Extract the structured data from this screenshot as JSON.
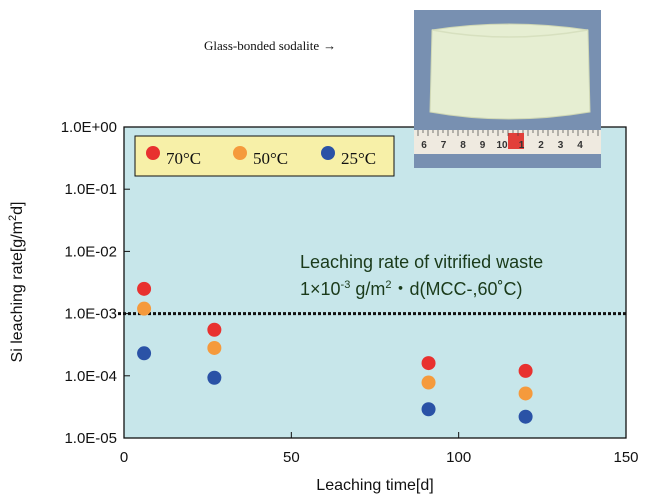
{
  "colors": {
    "plot_bg": "#c7e6ea",
    "legend_bg": "#f7f0a8",
    "series_70": "#e8312f",
    "series_50": "#f59a3c",
    "series_25": "#2a52a6",
    "reference_line": "#111111"
  },
  "photo": {
    "caption": "Glass-bonded sodalite",
    "arrow": "→",
    "ruler_numbers": [
      "6",
      "7",
      "8",
      "9",
      "10",
      "1",
      "2",
      "3",
      "4"
    ]
  },
  "annotation": {
    "line1": "Leaching rate of vitrified waste",
    "line2_prefix": "1×10",
    "line2_exp": "-3",
    "line2_unit": " g/m",
    "line2_sq": "2",
    "line2_suffix": "・d(MCC-,60˚C)"
  },
  "chart_data": {
    "type": "scatter",
    "xlabel": "Leaching time[d]",
    "ylabel_main": "Si leaching rate[g/m",
    "ylabel_sup": "2",
    "ylabel_end": "d]",
    "xlim": [
      0,
      150
    ],
    "ylim": [
      1e-05,
      1
    ],
    "yscale": "log",
    "xticks": [
      0,
      50,
      100,
      150
    ],
    "xtick_labels": [
      "0",
      "50",
      "100",
      "150"
    ],
    "yticks": [
      1e-05,
      0.0001,
      0.001,
      0.01,
      0.1,
      1
    ],
    "ytick_labels": [
      "1.0E-05",
      "1.0E-04",
      "1.0E-03",
      "1.0E-02",
      "1.0E-01",
      "1.0E+00"
    ],
    "grid": false,
    "legend_position": "top-left",
    "reference_value": 0.001,
    "series": [
      {
        "name": "70°C",
        "color": "#e8312f",
        "x": [
          6,
          27,
          91,
          120
        ],
        "y": [
          0.0025,
          0.00055,
          0.00016,
          0.00012
        ]
      },
      {
        "name": "50°C",
        "color": "#f59a3c",
        "x": [
          6,
          27,
          91,
          120
        ],
        "y": [
          0.0012,
          0.00028,
          7.8e-05,
          5.2e-05
        ]
      },
      {
        "name": "25°C",
        "color": "#2a52a6",
        "x": [
          6,
          27,
          91,
          120
        ],
        "y": [
          0.00023,
          9.3e-05,
          2.9e-05,
          2.2e-05
        ]
      }
    ]
  }
}
